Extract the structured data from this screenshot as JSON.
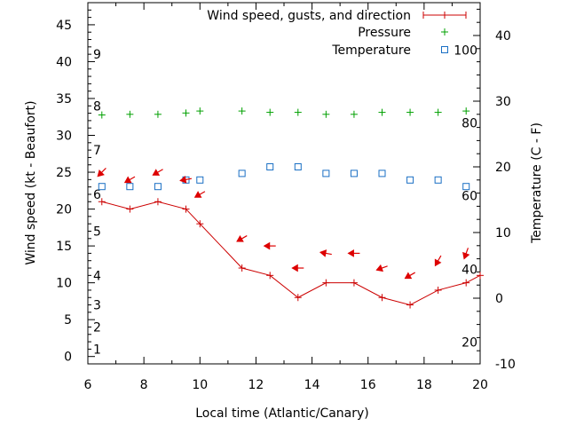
{
  "chart_data": {
    "type": "line",
    "xlabel": "Local time (Atlantic/Canary)",
    "ylabel_left": "Wind speed (kt - Beaufort)",
    "ylabel_right": "Temperature (C - F)",
    "xlim": [
      6,
      20
    ],
    "ylim_left": [
      -1,
      48
    ],
    "ylim_right": [
      -10,
      45
    ],
    "x_ticks": [
      6,
      8,
      10,
      12,
      14,
      16,
      18,
      20
    ],
    "y_ticks_left": [
      0,
      5,
      10,
      15,
      20,
      25,
      30,
      35,
      40,
      45
    ],
    "y_ticks_right": [
      -10,
      0,
      10,
      20,
      30,
      40
    ],
    "beaufort_labels": [
      {
        "label": "1",
        "kt": 1
      },
      {
        "label": "2",
        "kt": 4
      },
      {
        "label": "3",
        "kt": 7
      },
      {
        "label": "4",
        "kt": 11
      },
      {
        "label": "5",
        "kt": 17
      },
      {
        "label": "6",
        "kt": 22
      },
      {
        "label": "7",
        "kt": 28
      },
      {
        "label": "8",
        "kt": 34
      },
      {
        "label": "9",
        "kt": 41
      }
    ],
    "fahrenheit_labels": [
      {
        "label": "20",
        "temp_c": -6.7
      },
      {
        "label": "40",
        "temp_c": 4.4
      },
      {
        "label": "60",
        "temp_c": 15.6
      },
      {
        "label": "80",
        "temp_c": 26.7
      },
      {
        "label": "100",
        "temp_c": 37.8
      }
    ],
    "grid": false,
    "legend_position": "top-right",
    "legend": {
      "wind": "Wind speed, gusts, and direction",
      "pressure": "Pressure",
      "temperature": "Temperature"
    },
    "series": [
      {
        "name": "Wind speed, gusts, and direction",
        "axis": "left",
        "color": "#cc0000",
        "x": [
          6.5,
          7.5,
          8.5,
          9.5,
          10.0,
          11.5,
          12.5,
          13.5,
          14.5,
          15.5,
          16.5,
          17.5,
          18.5,
          19.5,
          20.0
        ],
        "y": [
          21,
          20,
          21,
          20,
          18,
          12,
          11,
          8,
          10,
          10,
          8,
          7,
          9,
          10,
          11
        ]
      },
      {
        "name": "Pressure",
        "axis": "right",
        "color": "#00a000",
        "x": [
          6.5,
          7.5,
          8.5,
          9.5,
          10.0,
          11.5,
          12.5,
          13.5,
          14.5,
          15.5,
          16.5,
          17.5,
          18.5,
          19.5
        ],
        "y": [
          27.9,
          28.0,
          28.0,
          28.2,
          28.5,
          28.5,
          28.3,
          28.3,
          28.0,
          28.0,
          28.3,
          28.3,
          28.3,
          28.5
        ]
      },
      {
        "name": "Temperature",
        "axis": "right",
        "color": "#1a6fc4",
        "x": [
          6.5,
          7.5,
          8.5,
          9.5,
          10.0,
          11.5,
          12.5,
          13.5,
          14.5,
          15.5,
          16.5,
          17.5,
          18.5,
          19.5
        ],
        "y": [
          17,
          17,
          17,
          18,
          18,
          19,
          20,
          20,
          19,
          19,
          19,
          18,
          18,
          17
        ]
      }
    ],
    "direction_arrows": {
      "color": "#dd0000",
      "points": [
        {
          "x": 6.5,
          "y": 25,
          "from_deg": 45
        },
        {
          "x": 7.5,
          "y": 24,
          "from_deg": 60
        },
        {
          "x": 8.5,
          "y": 25,
          "from_deg": 60
        },
        {
          "x": 9.5,
          "y": 24,
          "from_deg": 80
        },
        {
          "x": 10.0,
          "y": 22,
          "from_deg": 60
        },
        {
          "x": 11.5,
          "y": 16,
          "from_deg": 60
        },
        {
          "x": 12.5,
          "y": 15,
          "from_deg": 90
        },
        {
          "x": 13.5,
          "y": 12,
          "from_deg": 90
        },
        {
          "x": 14.5,
          "y": 14,
          "from_deg": 100
        },
        {
          "x": 15.5,
          "y": 14,
          "from_deg": 90
        },
        {
          "x": 16.5,
          "y": 12,
          "from_deg": 70
        },
        {
          "x": 17.5,
          "y": 11,
          "from_deg": 60
        },
        {
          "x": 18.5,
          "y": 13,
          "from_deg": 30
        },
        {
          "x": 19.5,
          "y": 14,
          "from_deg": 20
        }
      ]
    }
  }
}
